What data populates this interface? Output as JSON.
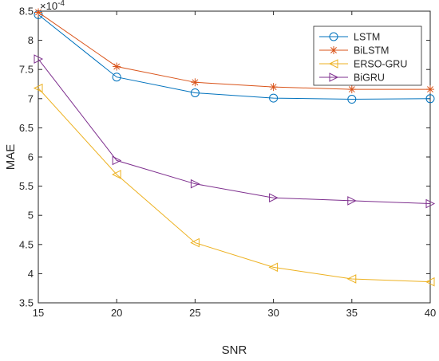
{
  "chart_data": {
    "type": "line",
    "xlabel": "SNR",
    "ylabel": "MAE",
    "y_exponent_label": "×10",
    "y_exponent_power": "-4",
    "x": [
      15,
      20,
      25,
      30,
      35,
      40
    ],
    "xlim": [
      15,
      40
    ],
    "ylim": [
      3.5,
      8.5
    ],
    "x_ticks": [
      15,
      20,
      25,
      30,
      35,
      40
    ],
    "y_ticks": [
      3.5,
      4,
      4.5,
      5,
      5.5,
      6,
      6.5,
      7,
      7.5,
      8,
      8.5
    ],
    "grid": false,
    "legend_position": "top-right",
    "series": [
      {
        "name": "LSTM",
        "color": "#0072BD",
        "marker": "circle",
        "values": [
          8.44,
          7.37,
          7.1,
          7.01,
          6.99,
          7.0
        ]
      },
      {
        "name": "BiLSTM",
        "color": "#D95319",
        "marker": "asterisk",
        "values": [
          8.48,
          7.55,
          7.28,
          7.2,
          7.16,
          7.16
        ]
      },
      {
        "name": "ERSO-GRU",
        "color": "#EDB120",
        "marker": "triangle-left",
        "values": [
          7.18,
          5.7,
          4.53,
          4.11,
          3.91,
          3.86
        ]
      },
      {
        "name": "BiGRU",
        "color": "#7E2F8E",
        "marker": "triangle-right",
        "values": [
          7.68,
          5.94,
          5.54,
          5.3,
          5.25,
          5.2
        ]
      }
    ]
  }
}
